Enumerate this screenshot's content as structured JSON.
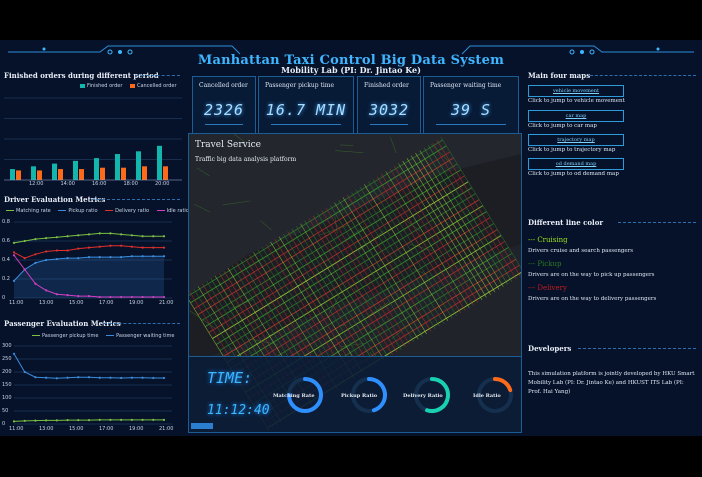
{
  "header": {
    "title": "Manhattan Taxi Control Big Data System",
    "subtitle": "Mobility Lab (PI: Dr. Jintao Ke)"
  },
  "left": {
    "finished_orders": {
      "title": "Finished orders during different period",
      "legend": [
        "Finished order",
        "Cancelled order"
      ],
      "colors": [
        "#13b6ad",
        "#ff6a1a"
      ],
      "categories": [
        "12:00",
        "14:00",
        "16:00",
        "18:00",
        "20:00"
      ],
      "chart_data": {
        "type": "bar",
        "series": [
          {
            "name": "Finished order",
            "values": [
              8,
              10,
              12,
              14,
              16,
              19,
              21,
              25
            ]
          },
          {
            "name": "Cancelled order",
            "values": [
              7,
              7,
              8,
              8,
              9,
              9,
              10,
              10
            ]
          }
        ],
        "ylim": [
          0,
          60
        ]
      }
    },
    "driver_metrics": {
      "title": "Driver Evaluation Metrics",
      "legend": [
        "Matching rate",
        "Pickup ratio",
        "Delivery ratio",
        "Idle ratio"
      ],
      "colors": [
        "#7bc043",
        "#3a8dde",
        "#e0302a",
        "#d43fc4"
      ],
      "y_ticks": [
        "0.8",
        "0.6",
        "0.4",
        "0.2",
        "0"
      ],
      "x_ticks": [
        "11:00",
        "13:00",
        "15:00",
        "17:00",
        "19:00",
        "21:00"
      ],
      "chart_data": {
        "type": "line",
        "ylim": [
          0,
          0.8
        ],
        "series": [
          {
            "name": "Matching rate",
            "values": [
              0.58,
              0.6,
              0.62,
              0.63,
              0.64,
              0.65,
              0.66,
              0.67,
              0.68,
              0.68,
              0.67,
              0.66,
              0.65,
              0.65,
              0.65
            ]
          },
          {
            "name": "Pickup ratio",
            "values": [
              0.18,
              0.3,
              0.37,
              0.4,
              0.41,
              0.42,
              0.42,
              0.43,
              0.43,
              0.43,
              0.43,
              0.44,
              0.44,
              0.44,
              0.44
            ]
          },
          {
            "name": "Delivery ratio",
            "values": [
              0.48,
              0.42,
              0.46,
              0.49,
              0.5,
              0.5,
              0.52,
              0.53,
              0.54,
              0.55,
              0.55,
              0.54,
              0.53,
              0.53,
              0.53
            ]
          },
          {
            "name": "Idle ratio",
            "values": [
              0.45,
              0.3,
              0.15,
              0.08,
              0.04,
              0.03,
              0.02,
              0.02,
              0.01,
              0.01,
              0.01,
              0.01,
              0.01,
              0.01,
              0.01
            ]
          }
        ]
      }
    },
    "passenger_metrics": {
      "title": "Passenger Evaluation Metrics",
      "legend": [
        "Passenger pickup time",
        "Passenger waiting time"
      ],
      "colors": [
        "#7bc043",
        "#3a8dde"
      ],
      "y_ticks": [
        "300",
        "250",
        "200",
        "150",
        "100",
        "50",
        "0"
      ],
      "x_ticks": [
        "11:00",
        "13:00",
        "15:00",
        "17:00",
        "19:00",
        "21:00"
      ],
      "chart_data": {
        "type": "line",
        "ylim": [
          0,
          300
        ],
        "series": [
          {
            "name": "Passenger pickup time",
            "values": [
              10,
              12,
              13,
              14,
              14,
              15,
              15,
              15,
              16,
              16,
              16,
              16,
              16,
              16,
              16
            ]
          },
          {
            "name": "Passenger waiting time",
            "values": [
              270,
              200,
              180,
              178,
              176,
              178,
              180,
              180,
              178,
              178,
              177,
              178,
              178,
              177,
              177
            ]
          }
        ]
      }
    }
  },
  "kpis": [
    {
      "label": "Cancelled order",
      "value": "2326"
    },
    {
      "label": "Passenger pickup time",
      "value": "16.7 MIN"
    },
    {
      "label": "Finished order",
      "value": "3032"
    },
    {
      "label": "Passenger waiting time",
      "value": "39 S"
    }
  ],
  "map": {
    "title": "Travel Service",
    "subtitle": "Traffic big data analysis platform",
    "time_label": "TIME:",
    "time_value": "11:12:40",
    "gauges": [
      {
        "label": "Matching Rate",
        "color": "#2f8fff",
        "fraction": 0.75
      },
      {
        "label": "Pickup Ratio",
        "color": "#2f8fff",
        "fraction": 0.45
      },
      {
        "label": "Delivery Ratio",
        "color": "#19d0b0",
        "fraction": 0.55
      },
      {
        "label": "Idle Ratio",
        "color": "#ff6a1a",
        "fraction": 0.2
      }
    ]
  },
  "right": {
    "maps_title": "Main four maps",
    "maps": [
      {
        "button": "vehicle movement",
        "desc": "Click to jump to vehicle movement"
      },
      {
        "button": "car map",
        "desc": "Click to jump to car map"
      },
      {
        "button": "trajectory map",
        "desc": "Click to jump to trajectory map"
      },
      {
        "button": "od demand map",
        "desc": "Click to jump to od demand map"
      }
    ],
    "lines_title": "Different line color",
    "lines": [
      {
        "name": "Cruising",
        "color": "#9ee21a",
        "desc": "Drivers cruise and search passengers"
      },
      {
        "name": "Pickup",
        "color": "#2d7a1e",
        "desc": "Drivers are on the way to pick up passengers"
      },
      {
        "name": "Delivery",
        "color": "#c21d1d",
        "desc": "Drivers are on the way to delivery passengers"
      }
    ],
    "dev_title": "Developers",
    "dev_text": "This simulation platform is jointly developed by HKU Smart Mobility Lab (PI: Dr. Jintao Ke) and HKUST ITS Lab (PI: Prof. Hai Yang)"
  }
}
